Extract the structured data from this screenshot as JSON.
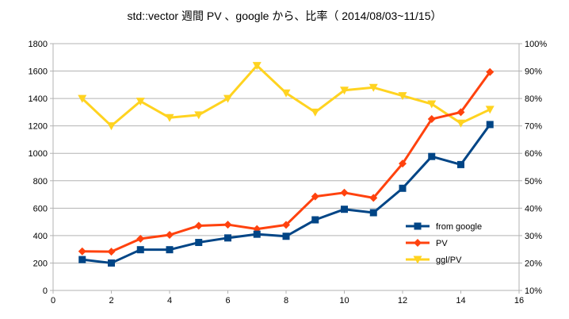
{
  "chart_data": {
    "type": "line",
    "title": "std::vector 週間 PV 、google から、比率（ 2014/08/03~11/15）",
    "xlabel": "",
    "ylabel": "",
    "y2label": "",
    "xlim": [
      0,
      16
    ],
    "ylim": [
      0,
      1800
    ],
    "y2lim": [
      0.1,
      1.0
    ],
    "x_ticks": [
      0,
      2,
      4,
      6,
      8,
      10,
      12,
      14,
      16
    ],
    "x_tick_labels": [
      "0",
      "2",
      "4",
      "6",
      "8",
      "10",
      "12",
      "14",
      "16"
    ],
    "y_ticks": [
      0,
      200,
      400,
      600,
      800,
      1000,
      1200,
      1400,
      1600,
      1800
    ],
    "y_tick_labels": [
      "0",
      "200",
      "400",
      "600",
      "800",
      "1000",
      "1200",
      "1400",
      "1600",
      "1800"
    ],
    "y2_ticks": [
      0.1,
      0.2,
      0.3,
      0.4,
      0.5,
      0.6,
      0.7,
      0.8,
      0.9,
      1.0
    ],
    "y2_tick_labels": [
      "10%",
      "20%",
      "30%",
      "40%",
      "50%",
      "60%",
      "70%",
      "80%",
      "90%",
      "100%"
    ],
    "grid": "horizontal",
    "legend_position": "right",
    "x": [
      1,
      2,
      3,
      4,
      5,
      6,
      7,
      8,
      9,
      10,
      11,
      12,
      13,
      14,
      15
    ],
    "series": [
      {
        "name": "from google",
        "axis": "left",
        "color": "#004586",
        "marker": "square",
        "values": [
          225,
          200,
          297,
          297,
          350,
          383,
          410,
          395,
          515,
          592,
          567,
          745,
          977,
          918,
          1210
        ]
      },
      {
        "name": "PV",
        "axis": "left",
        "color": "#ff420e",
        "marker": "diamond",
        "values": [
          285,
          283,
          377,
          405,
          472,
          480,
          448,
          478,
          685,
          713,
          675,
          925,
          1250,
          1300,
          1593
        ]
      },
      {
        "name": "ggl/PV",
        "axis": "right",
        "color": "#ffd320",
        "marker": "triangle-down",
        "values": [
          0.8,
          0.7,
          0.79,
          0.73,
          0.74,
          0.8,
          0.92,
          0.82,
          0.75,
          0.83,
          0.84,
          0.81,
          0.78,
          0.71,
          0.76
        ]
      }
    ]
  }
}
